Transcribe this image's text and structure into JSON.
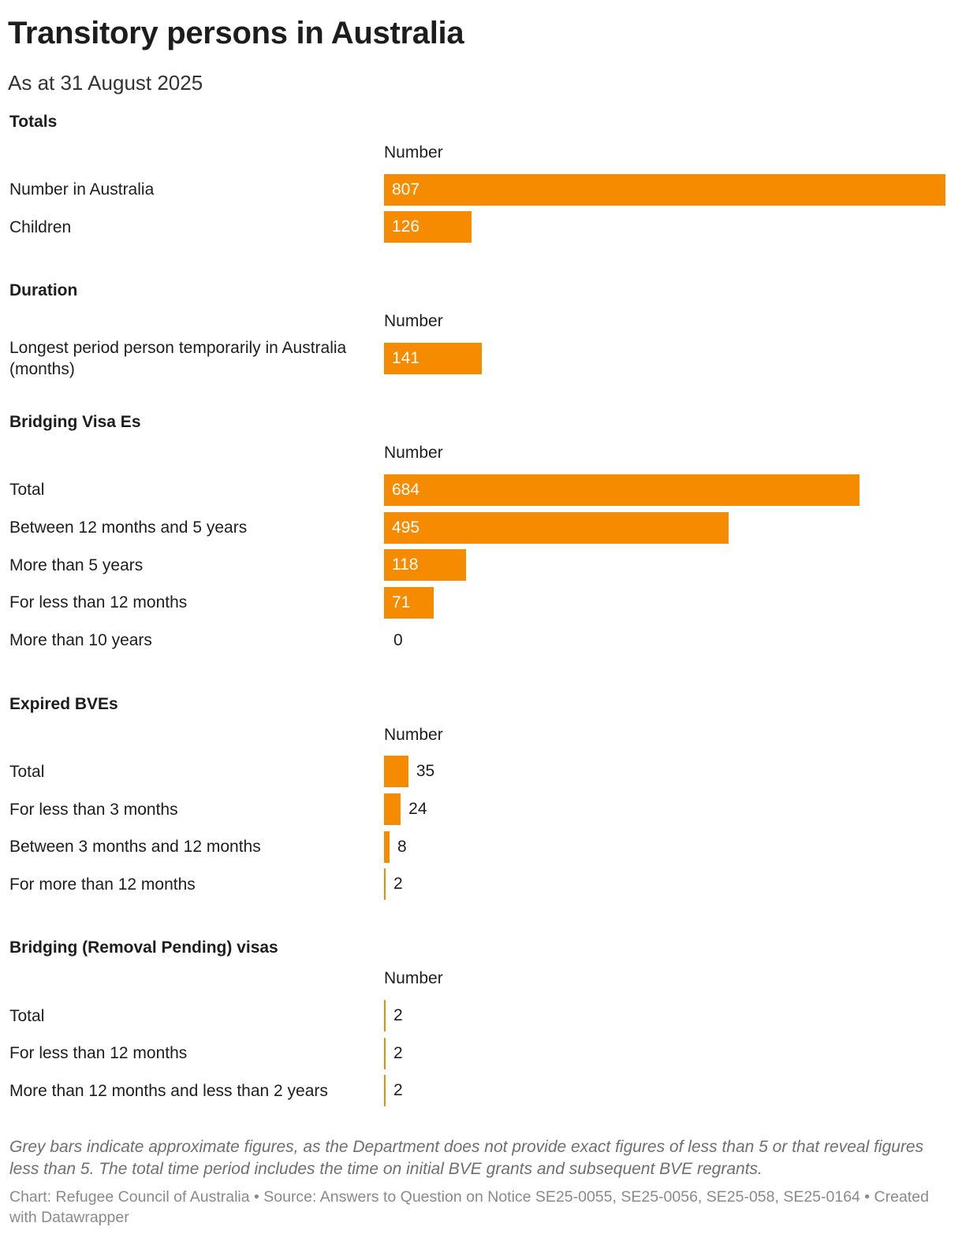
{
  "title": "Transitory persons in Australia",
  "subtitle": "As at 31 August 2025",
  "bar_color": "#f68b00",
  "chart_data": [
    {
      "type": "bar",
      "title": "Totals",
      "column_header": "Number",
      "categories": [
        "Number in Australia",
        "Children"
      ],
      "values": [
        807,
        126
      ]
    },
    {
      "type": "bar",
      "title": "Duration",
      "column_header": "Number",
      "categories": [
        "Longest period person temporarily in Australia (months)"
      ],
      "values": [
        141
      ]
    },
    {
      "type": "bar",
      "title": "Bridging Visa Es",
      "column_header": "Number",
      "categories": [
        "Total",
        "Between 12 months and 5 years",
        "More than 5 years",
        "For less than 12 months",
        "More than 10 years"
      ],
      "values": [
        684,
        495,
        118,
        71,
        0
      ]
    },
    {
      "type": "bar",
      "title": "Expired BVEs",
      "column_header": "Number",
      "categories": [
        "Total",
        "For less than 3 months",
        "Between 3 months and 12 months",
        "For more than 12 months"
      ],
      "values": [
        35,
        24,
        8,
        2
      ]
    },
    {
      "type": "bar",
      "title": "Bridging (Removal Pending) visas",
      "column_header": "Number",
      "categories": [
        "Total",
        "For less than 12 months",
        "More than 12 months and less than 2 years"
      ],
      "values": [
        2,
        2,
        2
      ]
    }
  ],
  "scale_max": 807,
  "footnote": "Grey bars indicate approximate figures, as the Department does not provide exact figures of less than 5 or that reveal figures less than 5. The total time period includes the time on initial BVE grants and subsequent BVE regrants.",
  "credit": "Chart: Refugee Council of Australia • Source: Answers to Question on Notice SE25-0055, SE25-0056, SE25-058, SE25-0164 • Created with Datawrapper"
}
